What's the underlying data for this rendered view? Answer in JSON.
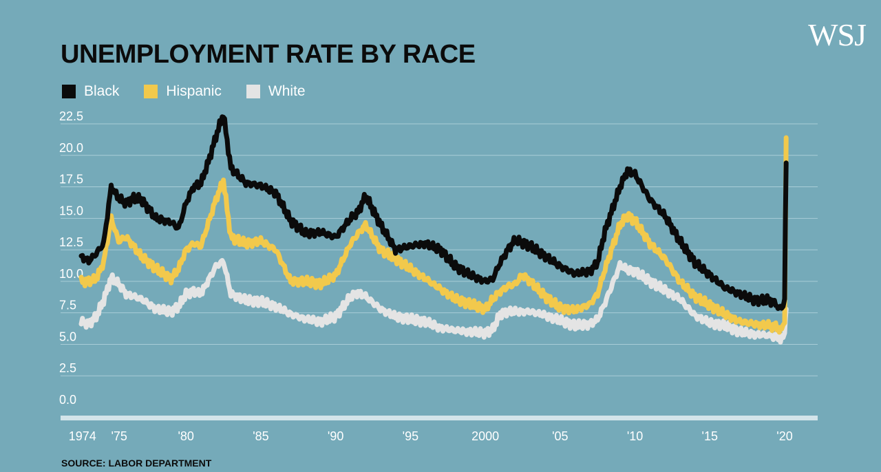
{
  "brand": "WSJ",
  "source": "SOURCE: LABOR DEPARTMENT",
  "chart_data": {
    "type": "line",
    "title": "UNEMPLOYMENT RATE BY RACE",
    "xlabel": "",
    "ylabel": "",
    "ylim": [
      0,
      22.5
    ],
    "xlim": [
      1972.9,
      2020.3
    ],
    "y_ticks": [
      "0.0",
      "2.5",
      "5.0",
      "7.5",
      "10.0",
      "12.5",
      "15.0",
      "17.5",
      "20.0",
      "22.5"
    ],
    "x_ticks": [
      {
        "label": "1974",
        "value": 1974
      },
      {
        "label": "'75",
        "value": 1975
      },
      {
        "label": "'80",
        "value": 1980
      },
      {
        "label": "'85",
        "value": 1985
      },
      {
        "label": "'90",
        "value": 1990
      },
      {
        "label": "'95",
        "value": 1995
      },
      {
        "label": "2000",
        "value": 2000
      },
      {
        "label": "'05",
        "value": 2005
      },
      {
        "label": "'10",
        "value": 2010
      },
      {
        "label": "'15",
        "value": 2015
      },
      {
        "label": "'20",
        "value": 2020
      }
    ],
    "grid": "horizontal",
    "legend": "top-left",
    "series": [
      {
        "name": "White",
        "color": "#e4e4e4",
        "x": [
          1973,
          1973.5,
          1974,
          1974.5,
          1975,
          1975.5,
          1976,
          1977,
          1978,
          1979,
          1979.5,
          1980,
          1980.5,
          1981,
          1982,
          1982.5,
          1983,
          1984,
          1985,
          1986,
          1987,
          1988,
          1989,
          1990,
          1991,
          1991.5,
          1992,
          1993,
          1994,
          1995,
          1996,
          1997,
          1998,
          1999,
          2000,
          2000.5,
          2001,
          2001.5,
          2002,
          2003,
          2004,
          2005,
          2006,
          2007,
          2007.5,
          2008,
          2009,
          2009.5,
          2010,
          2011,
          2012,
          2013,
          2014,
          2015,
          2016,
          2017,
          2018,
          2019,
          2019.8,
          2020.0,
          2020.05,
          2020.1
        ],
        "y": [
          6.8,
          6.6,
          7.2,
          8.5,
          10.3,
          9.8,
          9.0,
          8.6,
          7.8,
          7.6,
          8.0,
          9.0,
          9.2,
          9.0,
          11.2,
          11.6,
          9.0,
          8.5,
          8.4,
          8.0,
          7.4,
          7.0,
          6.8,
          7.2,
          8.8,
          9.1,
          8.8,
          7.8,
          7.2,
          7.0,
          6.8,
          6.3,
          6.1,
          6.0,
          5.9,
          6.2,
          7.4,
          7.6,
          7.6,
          7.6,
          7.3,
          6.9,
          6.5,
          6.6,
          7.0,
          8.3,
          11.3,
          10.9,
          10.8,
          10.0,
          9.3,
          8.6,
          7.3,
          6.7,
          6.5,
          6.0,
          5.8,
          5.7,
          5.5,
          5.9,
          7.0,
          7.8
        ]
      },
      {
        "name": "Hispanic",
        "color": "#f2c94c",
        "x": [
          1973,
          1973.5,
          1974,
          1974.5,
          1975,
          1975.5,
          1976,
          1976.5,
          1977,
          1978,
          1979,
          1979.5,
          1980,
          1980.5,
          1981,
          1982,
          1982.5,
          1983,
          1984,
          1985,
          1986,
          1987,
          1988,
          1989,
          1990,
          1991,
          1991.5,
          1992,
          1993,
          1994,
          1995,
          1996,
          1997,
          1998,
          1999,
          2000,
          2000.5,
          2001,
          2001.5,
          2002,
          2002.5,
          2003,
          2004,
          2005,
          2006,
          2007,
          2007.5,
          2008,
          2009,
          2009.5,
          2010,
          2011,
          2012,
          2013,
          2014,
          2015,
          2016,
          2017,
          2018,
          2019,
          2019.8,
          2020.0,
          2020.05,
          2020.1
        ],
        "y": [
          10.0,
          10.0,
          10.2,
          11.5,
          15.0,
          13.2,
          13.5,
          12.8,
          12.0,
          11.0,
          10.2,
          11.0,
          12.5,
          13.0,
          12.8,
          16.5,
          18.0,
          13.5,
          13.0,
          13.2,
          12.5,
          10.0,
          10.0,
          9.8,
          10.5,
          13.0,
          13.8,
          14.5,
          12.5,
          11.8,
          11.0,
          10.2,
          9.4,
          8.6,
          8.2,
          7.8,
          8.6,
          9.2,
          9.6,
          9.8,
          10.5,
          10.0,
          8.8,
          7.9,
          7.7,
          8.2,
          9.0,
          11.0,
          14.5,
          15.2,
          14.8,
          13.0,
          11.8,
          10.0,
          8.8,
          8.1,
          7.4,
          6.8,
          6.6,
          6.5,
          6.2,
          6.7,
          14.0,
          21.4
        ]
      },
      {
        "name": "Black",
        "color": "#0b0b0b",
        "x": [
          1973,
          1973.5,
          1974,
          1974.5,
          1975,
          1975.5,
          1976,
          1976.5,
          1977,
          1978,
          1979,
          1979.5,
          1980,
          1980.5,
          1981,
          1981.5,
          1982,
          1982.5,
          1983,
          1984,
          1985,
          1986,
          1987,
          1988,
          1989,
          1990,
          1991,
          1991.5,
          1992,
          1993,
          1994,
          1995,
          1996,
          1997,
          1998,
          1999,
          2000,
          2000.5,
          2001,
          2001.5,
          2002,
          2003,
          2004,
          2005,
          2006,
          2007,
          2007.5,
          2008,
          2009,
          2009.5,
          2010,
          2011,
          2012,
          2013,
          2014,
          2015,
          2016,
          2017,
          2018,
          2019,
          2019.8,
          2020.0,
          2020.05,
          2020.1
        ],
        "y": [
          12.0,
          11.6,
          12.2,
          13.0,
          17.5,
          16.6,
          16.2,
          16.6,
          16.5,
          15.0,
          14.7,
          14.2,
          16.2,
          17.5,
          17.8,
          19.5,
          21.5,
          23.3,
          19.0,
          17.8,
          17.6,
          17.0,
          14.8,
          13.8,
          13.9,
          13.5,
          15.0,
          15.5,
          16.8,
          14.5,
          12.5,
          12.8,
          13.0,
          12.5,
          11.2,
          10.5,
          10.0,
          10.2,
          11.5,
          12.5,
          13.3,
          12.8,
          12.0,
          11.2,
          10.6,
          10.8,
          11.5,
          14.0,
          17.5,
          18.8,
          18.5,
          16.5,
          15.2,
          13.2,
          11.5,
          10.5,
          9.5,
          9.0,
          8.5,
          8.5,
          7.8,
          8.6,
          15.0,
          19.4
        ]
      }
    ]
  }
}
